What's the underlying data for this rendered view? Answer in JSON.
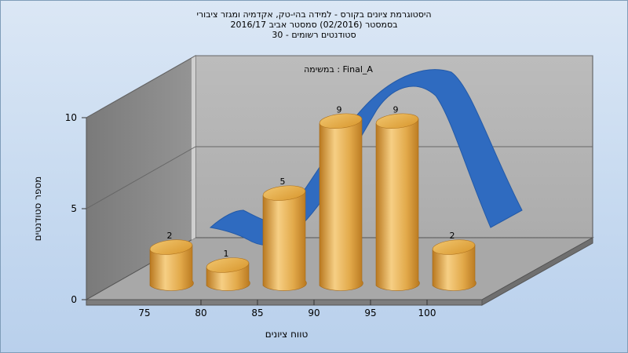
{
  "chart_data": {
    "type": "bar",
    "title_lines": [
      "היסטוגרמת ציונים בקורס - למידה בהי-טק, אקדמיה ומגזר ציבורי",
      "בסמסטר  (02/2016)  סמסטר אביב 2016/17",
      "סטודנטים רשומים - 30"
    ],
    "annotation": "במשימה : Final_A",
    "categories": [
      "75",
      "80",
      "85",
      "90",
      "95",
      "100"
    ],
    "values": [
      2,
      1,
      5,
      9,
      9,
      2
    ],
    "data_labels": [
      "2",
      "1",
      "5",
      "9",
      "9",
      "2"
    ],
    "ylim": [
      0,
      10
    ],
    "yticks": [
      "0",
      "5",
      "10"
    ],
    "xlabel": "טווח ציונים",
    "ylabel": "מספר סטודנטים",
    "grid": true,
    "colors": {
      "bar_light": "#f6cf84",
      "bar_mid": "#e2a94a",
      "bar_dark": "#b9781f",
      "curve": "#2f6bc0",
      "wall_back": "#b4b4b4",
      "wall_left": "#8c8c8c",
      "floor": "#a6a6a6"
    }
  }
}
